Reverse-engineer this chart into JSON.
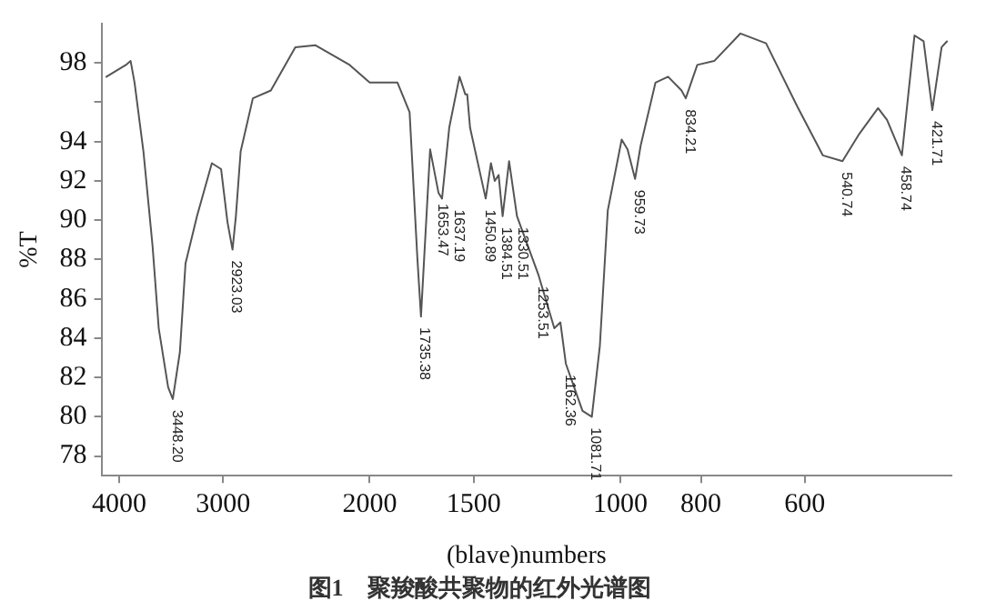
{
  "chart_data": {
    "type": "line",
    "title": "图1　聚羧酸共聚物的红外光谱图",
    "xlabel": "(blave)numbers",
    "ylabel": "%T",
    "x": [
      4143,
      3926,
      3875,
      3833,
      3740,
      3647,
      3585,
      3493,
      3448.2,
      3381,
      3329,
      3225,
      3095,
      3017,
      2964,
      2923.03,
      2896,
      2858,
      2763,
      2629,
      2457,
      2323,
      2114,
      2000,
      1852,
      1791,
      1753,
      1735.38,
      1720,
      1692,
      1653.47,
      1637.19,
      1605,
      1560,
      1535,
      1527,
      1515,
      1450.89,
      1430,
      1415,
      1400,
      1384.51,
      1360,
      1330.51,
      1253.51,
      1200,
      1180,
      1162.36,
      1110,
      1081.71,
      1058,
      1035,
      996,
      980,
      959.73,
      945,
      907,
      876,
      844,
      834.21,
      808,
      771,
      717,
      668,
      613,
      571,
      540.74,
      516,
      490,
      478,
      458.74,
      443,
      432,
      421.71,
      411,
      405
    ],
    "values": [
      97.3,
      97.9,
      98.1,
      97.0,
      93.5,
      88.7,
      84.5,
      81.5,
      80.9,
      83.3,
      87.8,
      90.2,
      92.9,
      92.6,
      89.9,
      88.5,
      90.2,
      93.5,
      96.2,
      96.6,
      98.8,
      98.9,
      97.9,
      97.0,
      97.0,
      95.5,
      88.1,
      85.1,
      88.1,
      93.6,
      91.4,
      91.1,
      94.7,
      97.3,
      96.4,
      96.4,
      94.7,
      91.1,
      92.9,
      92.0,
      92.3,
      90.2,
      93.0,
      90.2,
      87.2,
      84.5,
      84.8,
      82.7,
      80.3,
      80.0,
      83.6,
      90.5,
      94.1,
      93.6,
      92.1,
      93.8,
      97.0,
      97.3,
      96.6,
      96.2,
      97.9,
      98.1,
      99.5,
      99.0,
      95.8,
      93.3,
      93.0,
      94.4,
      95.7,
      95.1,
      93.3,
      99.4,
      99.1,
      95.6,
      98.8,
      99.1
    ],
    "color": "#555555",
    "log": "x",
    "xlim": [
      4200,
      400
    ],
    "xticks": [
      4000,
      3000,
      2000,
      1500,
      1000,
      800,
      600
    ],
    "ylim": [
      77,
      100
    ],
    "yticks": [
      78,
      80,
      82,
      84,
      86,
      88,
      90,
      92,
      94,
      {
        "value": 96,
        "label": null
      },
      98
    ],
    "grid": false,
    "legend": false,
    "marker": "none",
    "line_style": "solid",
    "annotations": [
      {
        "text": "3448.20",
        "x": 3448.2,
        "y": 80.9
      },
      {
        "text": "2923.03",
        "x": 2923.03,
        "y": 88.5
      },
      {
        "text": "1735.38",
        "x": 1735.38,
        "y": 85.1
      },
      {
        "text": "1653.47",
        "x": 1653.47,
        "y": 91.4
      },
      {
        "text": "1637.19",
        "x": 1637.19,
        "y": 91.1
      },
      {
        "text": "1450.89",
        "x": 1450.89,
        "y": 91.1
      },
      {
        "text": "1384.51",
        "x": 1384.51,
        "y": 90.2
      },
      {
        "text": "1330.51",
        "x": 1330.51,
        "y": 90.2
      },
      {
        "text": "1253.51",
        "x": 1253.51,
        "y": 87.2
      },
      {
        "text": "1162.36",
        "x": 1162.36,
        "y": 82.7
      },
      {
        "text": "1081.71",
        "x": 1081.71,
        "y": 80.0
      },
      {
        "text": "959.73",
        "x": 959.73,
        "y": 92.1
      },
      {
        "text": "834.21",
        "x": 834.21,
        "y": 96.2
      },
      {
        "text": "540.74",
        "x": 540.74,
        "y": 93.0
      },
      {
        "text": "458.74",
        "x": 458.74,
        "y": 93.3
      },
      {
        "text": "421.71",
        "x": 421.71,
        "y": 95.6
      }
    ]
  }
}
